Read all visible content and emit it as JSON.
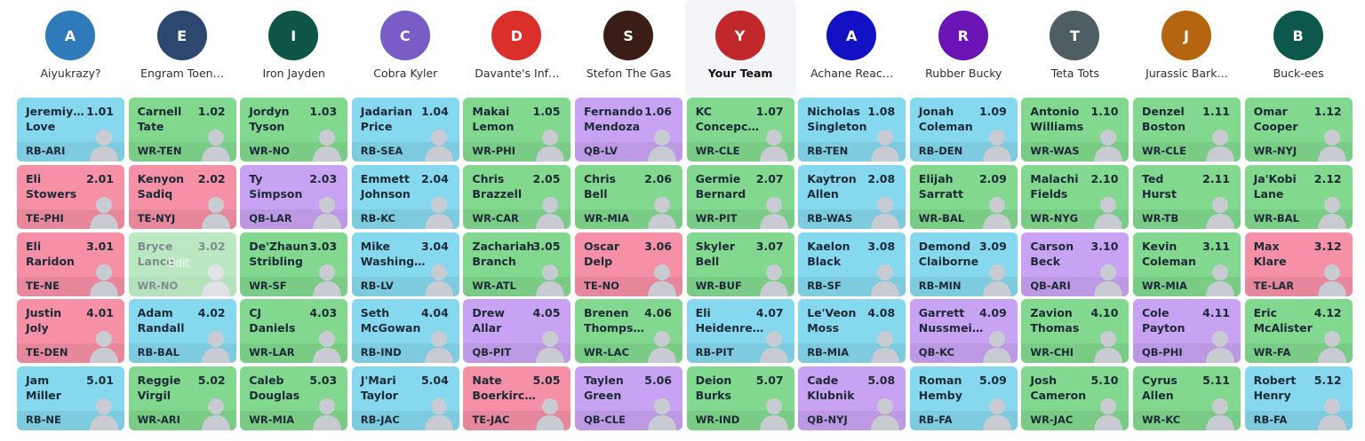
{
  "position_colors": {
    "RB": "#86d8ee",
    "WR": "#82d88f",
    "TE": "#f590a6",
    "QB": "#c9a3f3"
  },
  "teams": [
    {
      "initial": "A",
      "name": "Aiyukrazy?",
      "color": "#2f7ab8"
    },
    {
      "initial": "E",
      "name": "Engram Toen…",
      "color": "#2c4770"
    },
    {
      "initial": "I",
      "name": "Iron Jayden",
      "color": "#0f5548"
    },
    {
      "initial": "C",
      "name": "Cobra Kyler",
      "color": "#7a5cc6"
    },
    {
      "initial": "D",
      "name": "Davante's Inf…",
      "color": "#d9302b"
    },
    {
      "initial": "S",
      "name": "Stefon The Gas",
      "color": "#3a1d16"
    },
    {
      "initial": "Y",
      "name": "Your Team",
      "color": "#c1282b",
      "is_user": true
    },
    {
      "initial": "A",
      "name": "Achane Reac…",
      "color": "#1212c4"
    },
    {
      "initial": "R",
      "name": "Rubber Bucky",
      "color": "#6a14b6"
    },
    {
      "initial": "T",
      "name": "Teta Tots",
      "color": "#4e5e62"
    },
    {
      "initial": "J",
      "name": "Jurassic Bark…",
      "color": "#b5650f"
    },
    {
      "initial": "B",
      "name": "Buck-ees",
      "color": "#0e574c"
    }
  ],
  "rounds": [
    [
      {
        "first": "Jeremiy…",
        "last": "Love",
        "pick": "1.01",
        "pos": "RB-ARI"
      },
      {
        "first": "Carnell",
        "last": "Tate",
        "pick": "1.02",
        "pos": "WR-TEN"
      },
      {
        "first": "Jordyn",
        "last": "Tyson",
        "pick": "1.03",
        "pos": "WR-NO"
      },
      {
        "first": "Jadarian",
        "last": "Price",
        "pick": "1.04",
        "pos": "RB-SEA"
      },
      {
        "first": "Makai",
        "last": "Lemon",
        "pick": "1.05",
        "pos": "WR-PHI"
      },
      {
        "first": "Fernando",
        "last": "Mendoza",
        "pick": "1.06",
        "pos": "QB-LV"
      },
      {
        "first": "KC",
        "last": "Concepc…",
        "pick": "1.07",
        "pos": "WR-CLE"
      },
      {
        "first": "Nicholas",
        "last": "Singleton",
        "pick": "1.08",
        "pos": "RB-TEN"
      },
      {
        "first": "Jonah",
        "last": "Coleman",
        "pick": "1.09",
        "pos": "RB-DEN"
      },
      {
        "first": "Antonio",
        "last": "Williams",
        "pick": "1.10",
        "pos": "WR-WAS"
      },
      {
        "first": "Denzel",
        "last": "Boston",
        "pick": "1.11",
        "pos": "WR-CLE"
      },
      {
        "first": "Omar",
        "last": "Cooper",
        "pick": "1.12",
        "pos": "WR-NYJ"
      }
    ],
    [
      {
        "first": "Eli",
        "last": "Stowers",
        "pick": "2.01",
        "pos": "TE-PHI"
      },
      {
        "first": "Kenyon",
        "last": "Sadiq",
        "pick": "2.02",
        "pos": "TE-NYJ"
      },
      {
        "first": "Ty",
        "last": "Simpson",
        "pick": "2.03",
        "pos": "QB-LAR"
      },
      {
        "first": "Emmett",
        "last": "Johnson",
        "pick": "2.04",
        "pos": "RB-KC"
      },
      {
        "first": "Chris",
        "last": "Brazzell",
        "pick": "2.05",
        "pos": "WR-CAR"
      },
      {
        "first": "Chris",
        "last": "Bell",
        "pick": "2.06",
        "pos": "WR-MIA"
      },
      {
        "first": "Germie",
        "last": "Bernard",
        "pick": "2.07",
        "pos": "WR-PIT"
      },
      {
        "first": "Kaytron",
        "last": "Allen",
        "pick": "2.08",
        "pos": "RB-WAS"
      },
      {
        "first": "Elijah",
        "last": "Sarratt",
        "pick": "2.09",
        "pos": "WR-BAL"
      },
      {
        "first": "Malachi",
        "last": "Fields",
        "pick": "2.10",
        "pos": "WR-NYG"
      },
      {
        "first": "Ted",
        "last": "Hurst",
        "pick": "2.11",
        "pos": "WR-TB"
      },
      {
        "first": "Ja'Kobi",
        "last": "Lane",
        "pick": "2.12",
        "pos": "WR-BAL"
      }
    ],
    [
      {
        "first": "Eli",
        "last": "Raridon",
        "pick": "3.01",
        "pos": "TE-NE"
      },
      {
        "first": "Bryce",
        "last": "Lance",
        "pick": "3.02",
        "pos": "WR-NO",
        "edit": "Edit"
      },
      {
        "first": "De'Zhaun",
        "last": "Stribling",
        "pick": "3.03",
        "pos": "WR-SF"
      },
      {
        "first": "Mike",
        "last": "Washing…",
        "pick": "3.04",
        "pos": "RB-LV"
      },
      {
        "first": "Zachariah",
        "last": "Branch",
        "pick": "3.05",
        "pos": "WR-ATL"
      },
      {
        "first": "Oscar",
        "last": "Delp",
        "pick": "3.06",
        "pos": "TE-NO"
      },
      {
        "first": "Skyler",
        "last": "Bell",
        "pick": "3.07",
        "pos": "WR-BUF"
      },
      {
        "first": "Kaelon",
        "last": "Black",
        "pick": "3.08",
        "pos": "RB-SF"
      },
      {
        "first": "Demond",
        "last": "Claiborne",
        "pick": "3.09",
        "pos": "RB-MIN"
      },
      {
        "first": "Carson",
        "last": "Beck",
        "pick": "3.10",
        "pos": "QB-ARI"
      },
      {
        "first": "Kevin",
        "last": "Coleman",
        "pick": "3.11",
        "pos": "WR-MIA"
      },
      {
        "first": "Max",
        "last": "Klare",
        "pick": "3.12",
        "pos": "TE-LAR"
      }
    ],
    [
      {
        "first": "Justin",
        "last": "Joly",
        "pick": "4.01",
        "pos": "TE-DEN"
      },
      {
        "first": "Adam",
        "last": "Randall",
        "pick": "4.02",
        "pos": "RB-BAL"
      },
      {
        "first": "CJ",
        "last": "Daniels",
        "pick": "4.03",
        "pos": "WR-LAR"
      },
      {
        "first": "Seth",
        "last": "McGowan",
        "pick": "4.04",
        "pos": "RB-IND"
      },
      {
        "first": "Drew",
        "last": "Allar",
        "pick": "4.05",
        "pos": "QB-PIT"
      },
      {
        "first": "Brenen",
        "last": "Thomps…",
        "pick": "4.06",
        "pos": "WR-LAC"
      },
      {
        "first": "Eli",
        "last": "Heidenre…",
        "pick": "4.07",
        "pos": "RB-PIT"
      },
      {
        "first": "Le'Veon",
        "last": "Moss",
        "pick": "4.08",
        "pos": "RB-MIA"
      },
      {
        "first": "Garrett",
        "last": "Nussmei…",
        "pick": "4.09",
        "pos": "QB-KC"
      },
      {
        "first": "Zavion",
        "last": "Thomas",
        "pick": "4.10",
        "pos": "WR-CHI"
      },
      {
        "first": "Cole",
        "last": "Payton",
        "pick": "4.11",
        "pos": "QB-PHI"
      },
      {
        "first": "Eric",
        "last": "McAlister",
        "pick": "4.12",
        "pos": "WR-FA"
      }
    ],
    [
      {
        "first": "Jam",
        "last": "Miller",
        "pick": "5.01",
        "pos": "RB-NE"
      },
      {
        "first": "Reggie",
        "last": "Virgil",
        "pick": "5.02",
        "pos": "WR-ARI"
      },
      {
        "first": "Caleb",
        "last": "Douglas",
        "pick": "5.03",
        "pos": "WR-MIA"
      },
      {
        "first": "J'Mari",
        "last": "Taylor",
        "pick": "5.04",
        "pos": "RB-JAC"
      },
      {
        "first": "Nate",
        "last": "Boerkirc…",
        "pick": "5.05",
        "pos": "TE-JAC"
      },
      {
        "first": "Taylen",
        "last": "Green",
        "pick": "5.06",
        "pos": "QB-CLE"
      },
      {
        "first": "Deion",
        "last": "Burks",
        "pick": "5.07",
        "pos": "WR-IND"
      },
      {
        "first": "Cade",
        "last": "Klubnik",
        "pick": "5.08",
        "pos": "QB-NYJ"
      },
      {
        "first": "Roman",
        "last": "Hemby",
        "pick": "5.09",
        "pos": "RB-FA"
      },
      {
        "first": "Josh",
        "last": "Cameron",
        "pick": "5.10",
        "pos": "WR-JAC"
      },
      {
        "first": "Cyrus",
        "last": "Allen",
        "pick": "5.11",
        "pos": "WR-KC"
      },
      {
        "first": "Robert",
        "last": "Henry",
        "pick": "5.12",
        "pos": "RB-FA"
      }
    ]
  ]
}
